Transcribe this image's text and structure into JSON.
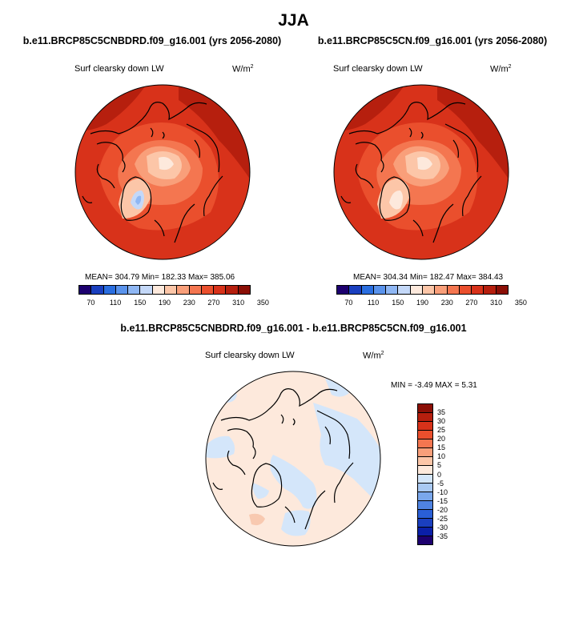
{
  "title": "JJA",
  "panels": [
    {
      "case_title": "b.e11.BRCP85C5CNBDRD.f09_g16.001 (yrs 2056-2080)",
      "variable": "Surf clearsky down LW",
      "units_base": "W/m",
      "units_exp": "2",
      "stats": "MEAN= 304.79  Min= 182.33  Max= 385.06",
      "colorbar": {
        "ticks": [
          "70",
          "110",
          "150",
          "190",
          "230",
          "270",
          "310",
          "350"
        ],
        "colors": [
          "#1d006f",
          "#1a3fbf",
          "#2a6ee0",
          "#5a93ec",
          "#8fb7f4",
          "#c4d8f8",
          "#fde9dc",
          "#fcc6a8",
          "#f99f7a",
          "#f47650",
          "#ea4f2d",
          "#d8321a",
          "#b61f0e",
          "#8b0f06"
        ]
      }
    },
    {
      "case_title": "b.e11.BRCP85C5CN.f09_g16.001 (yrs 2056-2080)",
      "variable": "Surf clearsky down LW",
      "units_base": "W/m",
      "units_exp": "2",
      "stats": "MEAN= 304.34  Min= 182.47  Max= 384.43",
      "colorbar": {
        "ticks": [
          "70",
          "110",
          "150",
          "190",
          "230",
          "270",
          "310",
          "350"
        ],
        "colors": [
          "#1d006f",
          "#1a3fbf",
          "#2a6ee0",
          "#5a93ec",
          "#8fb7f4",
          "#c4d8f8",
          "#fde9dc",
          "#fcc6a8",
          "#f99f7a",
          "#f47650",
          "#ea4f2d",
          "#d8321a",
          "#b61f0e",
          "#8b0f06"
        ]
      }
    }
  ],
  "diff_panel": {
    "case_title": "b.e11.BRCP85C5CNBDRD.f09_g16.001 - b.e11.BRCP85C5CN.f09_g16.001",
    "variable": "Surf clearsky down LW",
    "units_base": "W/m",
    "units_exp": "2",
    "stats": "MIN =  -3.49 MAX =   5.31",
    "colorbar": {
      "ticks": [
        "35",
        "30",
        "25",
        "20",
        "15",
        "10",
        "5",
        "0",
        "-5",
        "-10",
        "-15",
        "-20",
        "-25",
        "-30",
        "-35"
      ],
      "colors": [
        "#8b0f06",
        "#b61f0e",
        "#d8321a",
        "#ea4f2d",
        "#f47650",
        "#f99f7a",
        "#fcc6a8",
        "#fde9dc",
        "#d4e6fa",
        "#a9c9f3",
        "#7aa7ec",
        "#4f83e2",
        "#2a5fd6",
        "#1a3fbf",
        "#0a1fa8",
        "#1d006f"
      ]
    }
  }
}
